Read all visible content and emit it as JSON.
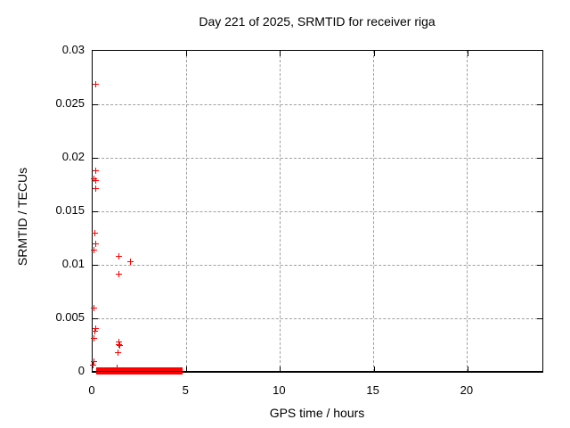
{
  "chart_data": {
    "type": "scatter",
    "title": "Day 221 of 2025, SRMTID for receiver riga",
    "xlabel": "GPS time / hours",
    "ylabel": "SRMTID / TECUs",
    "xlim": [
      0,
      24
    ],
    "ylim": [
      0,
      0.03
    ],
    "xticks": [
      0,
      5,
      10,
      15,
      20
    ],
    "xtick_labels": [
      "0",
      "5",
      "10",
      "15",
      "20"
    ],
    "yticks": [
      0,
      0.005,
      0.01,
      0.015,
      0.02,
      0.025,
      0.03
    ],
    "ytick_labels": [
      "0",
      "0.005",
      "0.01",
      "0.015",
      "0.02",
      "0.025",
      "0.03"
    ],
    "grid": true,
    "legend": "none",
    "marker": "plus",
    "marker_color": "#ff0000",
    "grid_color": "#a0a0a0",
    "series": [
      {
        "name": "SRMTID",
        "points": [
          [
            0.14,
            0.0269
          ],
          [
            0.16,
            0.0188
          ],
          [
            0.05,
            0.0181
          ],
          [
            0.14,
            0.0179
          ],
          [
            0.16,
            0.0172
          ],
          [
            0.09,
            0.013
          ],
          [
            0.14,
            0.012
          ],
          [
            0.05,
            0.0114
          ],
          [
            1.39,
            0.0108
          ],
          [
            1.99,
            0.0103
          ],
          [
            1.37,
            0.0092
          ],
          [
            0.05,
            0.006
          ],
          [
            0.14,
            0.0041
          ],
          [
            0.09,
            0.0038
          ],
          [
            0.05,
            0.0032
          ],
          [
            1.37,
            0.0028
          ],
          [
            1.37,
            0.0026
          ],
          [
            1.42,
            0.0025
          ],
          [
            1.33,
            0.0018
          ],
          [
            0.05,
            0.001
          ],
          [
            0.02,
            0.0007
          ],
          [
            1.28,
            0.0004
          ]
        ]
      }
    ],
    "zero_band": {
      "comment_visible_as": "dense run of plus markers at y=0",
      "x_start": 0.18,
      "x_end": 4.79,
      "y": 0.0
    }
  }
}
